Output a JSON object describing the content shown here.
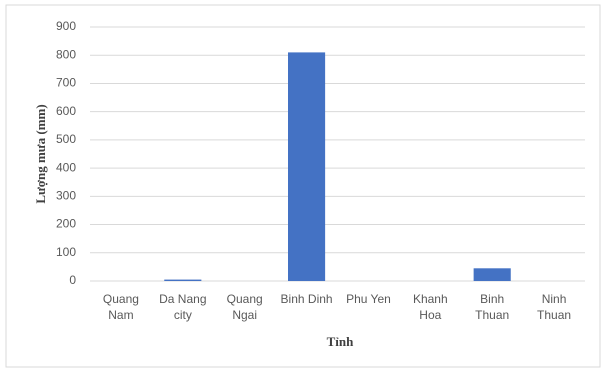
{
  "chart_data": {
    "type": "bar",
    "categories": [
      "Quang Nam",
      "Da Nang city",
      "Quang Ngai",
      "Binh Dinh",
      "Phu Yen",
      "Khanh Hoa",
      "Binh Thuan",
      "Ninh Thuan"
    ],
    "values": [
      0,
      5,
      0,
      810,
      0,
      0,
      45,
      0
    ],
    "color": "#4472c4",
    "x_label": "Tỉnh",
    "y_label": "Lượng mưa (mm)",
    "ylim": [
      0,
      900
    ],
    "yticks": [
      0,
      100,
      200,
      300,
      400,
      500,
      600,
      700,
      800,
      900
    ],
    "grid": true
  }
}
